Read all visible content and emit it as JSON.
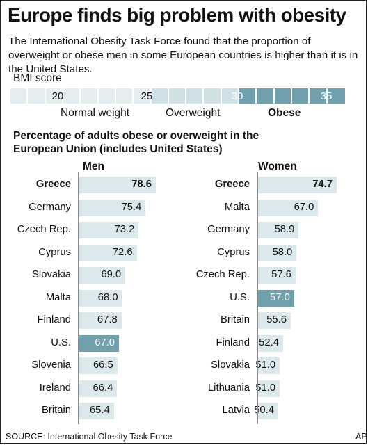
{
  "title": "Europe finds big problem with obesity",
  "subtitle": "The International Obesity Task Force found that the proportion of overweight or obese men in some European countries is higher than it is in the United States.",
  "bmi": {
    "label": "BMI score",
    "ticks": [
      "20",
      "25",
      "30",
      "35"
    ],
    "categories": [
      "Normal weight",
      "Overweight",
      "Obese"
    ]
  },
  "chart_title": "Percentage of adults obese or overweight in the European Union (includes United States)",
  "colors": {
    "bar": "#dbe8ec",
    "highlight": "#6fa0ac",
    "bmi_light": "#e4eef1",
    "bmi_mid": "#cfe0e6",
    "bmi_dark": "#6fa0ac"
  },
  "chart_data": [
    {
      "type": "bar",
      "title": "Men",
      "categories": [
        "Greece",
        "Germany",
        "Czech Rep.",
        "Cyprus",
        "Slovakia",
        "Malta",
        "Finland",
        "U.S.",
        "Slovenia",
        "Ireland",
        "Britain"
      ],
      "values": [
        78.6,
        75.4,
        73.2,
        72.6,
        69.0,
        68.0,
        67.8,
        67.0,
        66.5,
        66.4,
        65.4
      ],
      "labels": [
        "78.6",
        "75.4",
        "73.2",
        "72.6",
        "69.0",
        "68.0",
        "67.8",
        "67.0",
        "66.5",
        "66.4",
        "65.4"
      ],
      "highlight": "U.S.",
      "emphasis": "Greece"
    },
    {
      "type": "bar",
      "title": "Women",
      "categories": [
        "Greece",
        "Malta",
        "Germany",
        "Cyprus",
        "Czech Rep.",
        "U.S.",
        "Britain",
        "Finland",
        "Slovakia",
        "Lithuania",
        "Latvia"
      ],
      "values": [
        74.7,
        67.0,
        58.9,
        58.0,
        57.6,
        57.0,
        55.6,
        52.4,
        51.0,
        51.0,
        50.4
      ],
      "labels": [
        "74.7",
        "67.0",
        "58.9",
        "58.0",
        "57.6",
        "57.0",
        "55.6",
        "52.4",
        "51.0",
        "51.0",
        "50.4"
      ],
      "highlight": "U.S.",
      "emphasis": "Greece"
    }
  ],
  "source": "SOURCE: International Obesity Task Force",
  "credit": "AP"
}
